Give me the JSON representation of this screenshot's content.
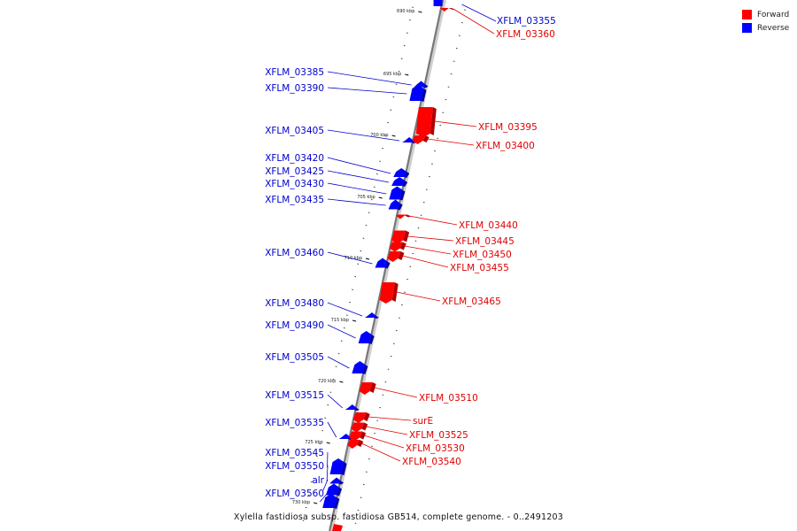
{
  "legend": {
    "forward_label": "Forward",
    "reverse_label": "Reverse",
    "forward_color": "#ff0000",
    "reverse_color": "#0000ff"
  },
  "caption": "Xylella fastidiosa subsp. fastidiosa GB514, complete genome. - 0..2491203",
  "ticks": [
    "690 kbp",
    "695 kbp",
    "700 kbp",
    "705 kbp",
    "710 kbp",
    "715 kbp",
    "720 kbp",
    "725 kbp",
    "730 kbp"
  ],
  "genes_forward": [
    "XFLM_03360",
    "XFLM_03395",
    "XFLM_03400",
    "XFLM_03440",
    "XFLM_03445",
    "XFLM_03450",
    "XFLM_03455",
    "XFLM_03465",
    "XFLM_03510",
    "surE",
    "XFLM_03525",
    "XFLM_03530",
    "XFLM_03540"
  ],
  "genes_reverse": [
    "XFLM_03355",
    "XFLM_03385",
    "XFLM_03390",
    "XFLM_03405",
    "XFLM_03420",
    "XFLM_03425",
    "XFLM_03430",
    "XFLM_03435",
    "XFLM_03460",
    "XFLM_03480",
    "XFLM_03490",
    "XFLM_03505",
    "XFLM_03515",
    "XFLM_03535",
    "XFLM_03545",
    "XFLM_03550",
    "alr",
    "XFLM_03560"
  ]
}
